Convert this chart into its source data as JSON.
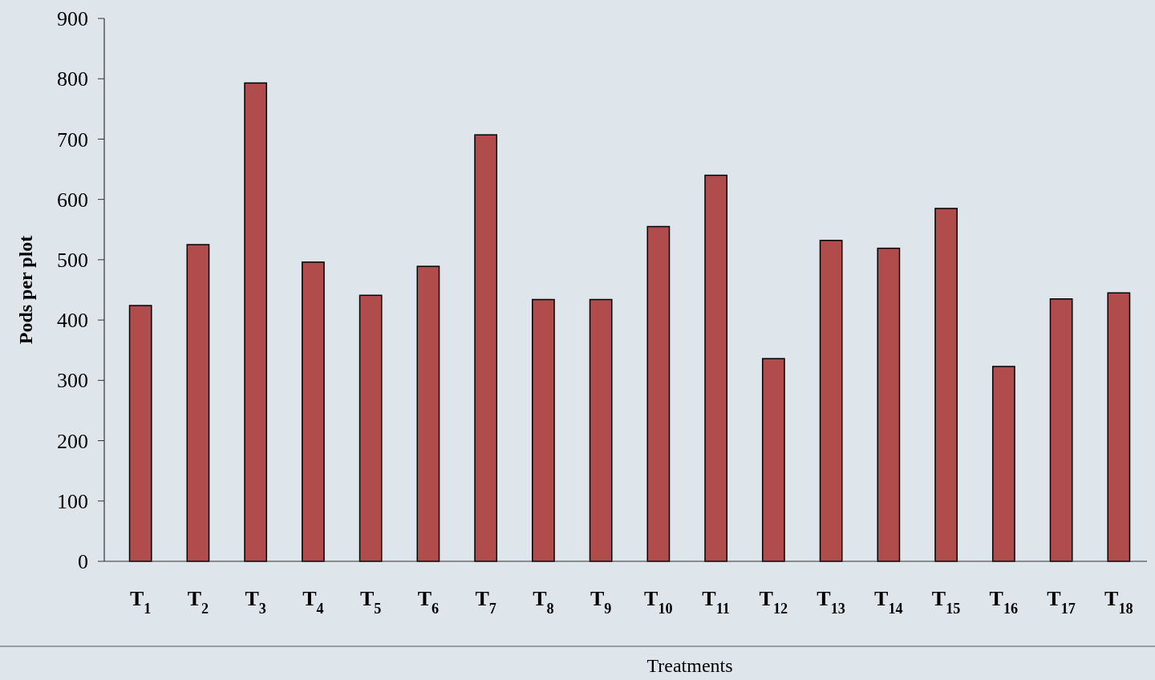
{
  "chart_data": {
    "type": "bar",
    "xlabel": "Treatments",
    "ylabel": "Pods per plot",
    "categories": [
      "T$_{1}$",
      "T$_{2}$",
      "T$_{3}$",
      "T$_{4}$",
      "T$_{5}$",
      "T$_{6}$",
      "T$_{7}$",
      "T$_{8}$",
      "T$_{9}$",
      "T$_{10}$",
      "T$_{11}$",
      "T$_{12}$",
      "T$_{13}$",
      "T$_{14}$",
      "T$_{15}$",
      "T$_{16}$",
      "T$_{17}$",
      "T$_{18}$"
    ],
    "values": [
      424,
      525,
      793,
      496,
      441,
      489,
      707,
      434,
      434,
      555,
      640,
      336,
      532,
      519,
      585,
      323,
      435,
      445
    ],
    "color": "#b04c4c",
    "ylim": [
      0,
      900
    ],
    "yticks": [
      0,
      100,
      200,
      300,
      400,
      500,
      600,
      700,
      800,
      900
    ],
    "grid": false
  }
}
